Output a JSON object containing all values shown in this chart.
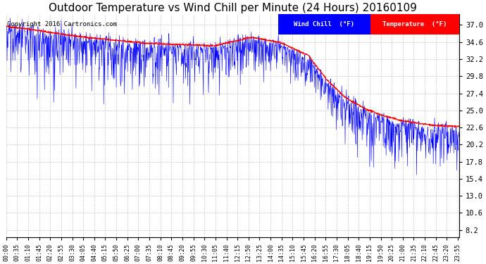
{
  "title": "Outdoor Temperature vs Wind Chill per Minute (24 Hours) 20160109",
  "copyright": "Copyright 2016 Cartronics.com",
  "ylabel_right_ticks": [
    8.2,
    10.6,
    13.0,
    15.4,
    17.8,
    20.2,
    22.6,
    25.0,
    27.4,
    29.8,
    32.2,
    34.6,
    37.0
  ],
  "temp_color": "#ff0000",
  "wind_chill_color": "#0000ff",
  "background_color": "#ffffff",
  "grid_color": "#c8c8c8",
  "legend_wind_chill_bg": "#0000ff",
  "legend_temp_bg": "#ff0000",
  "legend_text_color": "#ffffff",
  "title_fontsize": 11,
  "copyright_fontsize": 6.5,
  "tick_label_fontsize": 6,
  "ytick_fontsize": 7.5,
  "ylim": [
    7.2,
    38.5
  ],
  "xlim_min": 0,
  "xlim_max": 1439,
  "n_minutes": 1440,
  "tick_step": 35,
  "legend_wc_text": "Wind Chill  (°F)",
  "legend_temp_text": "Temperature  (°F)"
}
